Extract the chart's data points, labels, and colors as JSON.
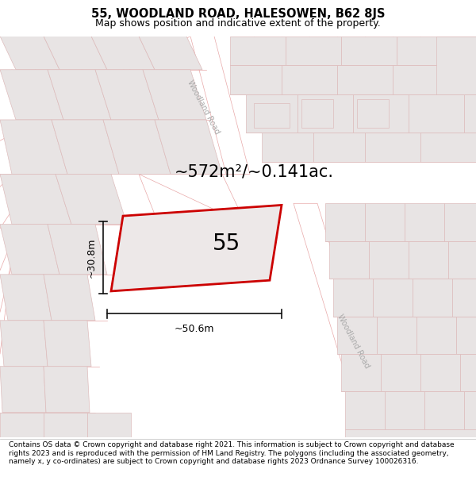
{
  "title_line1": "55, WOODLAND ROAD, HALESOWEN, B62 8JS",
  "title_line2": "Map shows position and indicative extent of the property.",
  "footer_text": "Contains OS data © Crown copyright and database right 2021. This information is subject to Crown copyright and database rights 2023 and is reproduced with the permission of HM Land Registry. The polygons (including the associated geometry, namely x, y co-ordinates) are subject to Crown copyright and database rights 2023 Ordnance Survey 100026316.",
  "area_label": "~572m²/~0.141ac.",
  "width_label": "~50.6m",
  "height_label": "~30.8m",
  "property_number": "55",
  "bg_color": "#f9f6f6",
  "road_line_color": "#e8a8a8",
  "block_color": "#e8e4e4",
  "block_outline": "#ddbcbc",
  "property_fill": "#ede8e8",
  "property_outline": "#cc0000",
  "white_road_color": "#ffffff",
  "dimension_color": "#111111",
  "title_fontsize": 10.5,
  "subtitle_fontsize": 9,
  "footer_fontsize": 6.5,
  "area_fontsize": 15,
  "number_fontsize": 20,
  "dim_fontsize": 9,
  "road_label_fontsize": 7,
  "road_label_color": "#aaaaaa"
}
